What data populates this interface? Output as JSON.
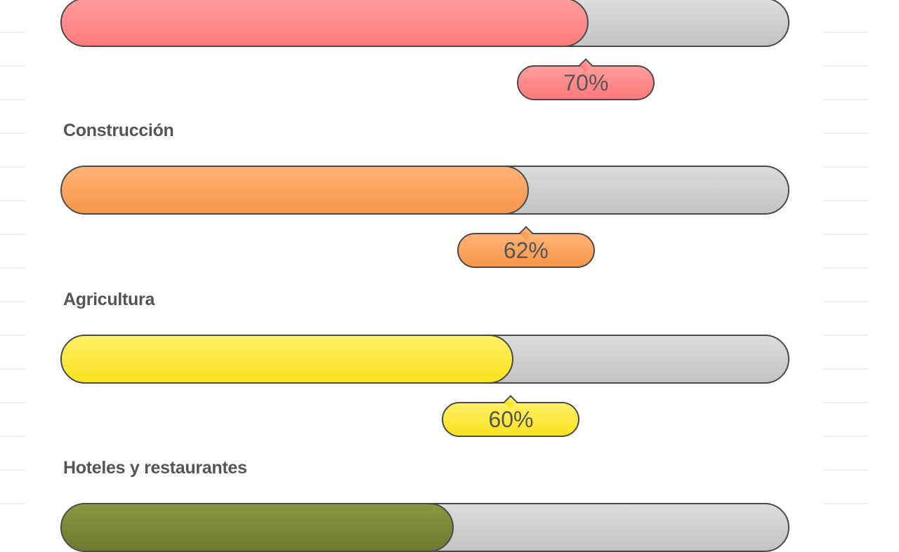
{
  "bars": [
    {
      "label": "",
      "percent": 70,
      "percent_label": "70%",
      "color": "#ff7b7b",
      "color_light": "#ff9c9c"
    },
    {
      "label": "Construcción",
      "percent": 62,
      "percent_label": "62%",
      "color": "#f7974a",
      "color_light": "#ffb277"
    },
    {
      "label": "Agricultura",
      "percent": 60,
      "percent_label": "60%",
      "color": "#f9e21e",
      "color_light": "#fff066"
    },
    {
      "label": "Hoteles y restaurantes",
      "percent": 52,
      "percent_label": "",
      "color": "#6e7a2e",
      "color_light": "#8a9740"
    }
  ]
}
